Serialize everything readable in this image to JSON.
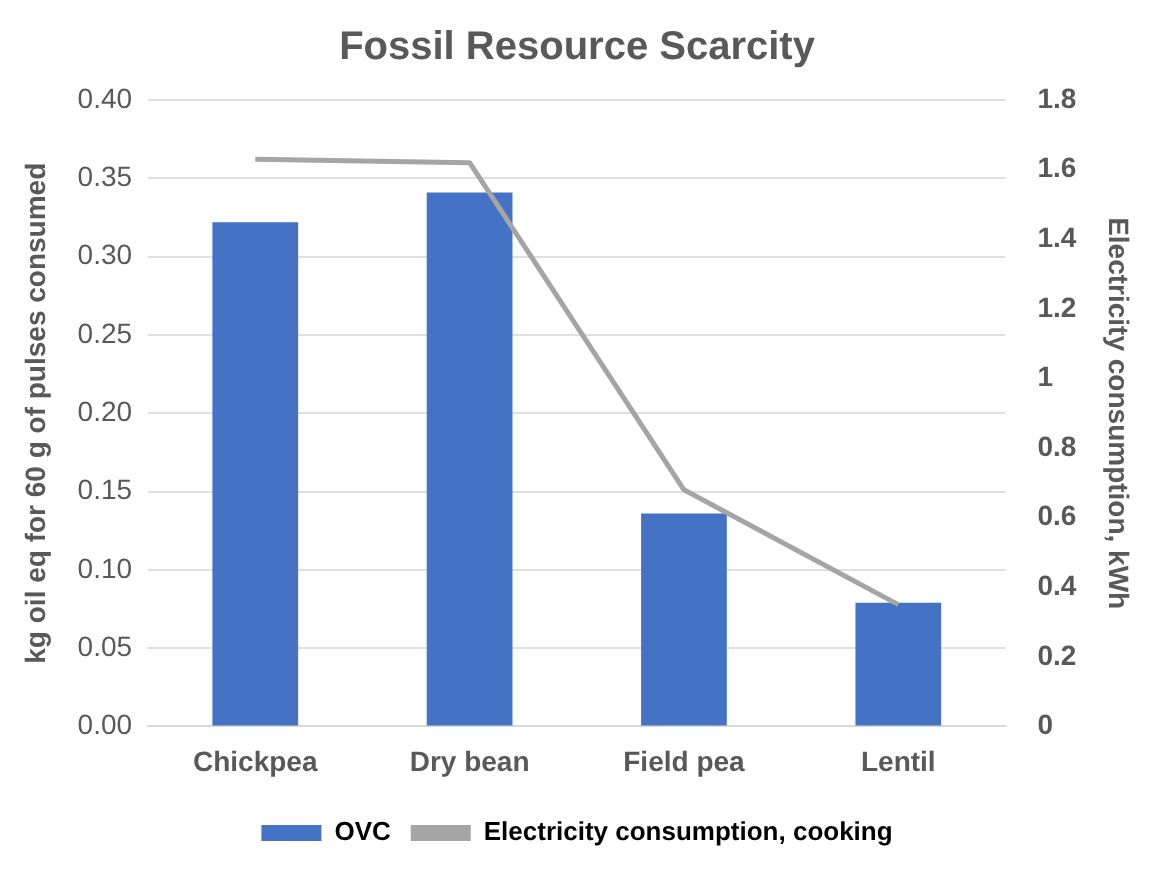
{
  "chart_data": {
    "type": "bar",
    "title": "Fossil Resource Scarcity",
    "ylabel": "kg oil eq for 60 g of pulses consumed",
    "y2label": "Electricity consumption, kWh",
    "categories": [
      "Chickpea",
      "Dry bean",
      "Field pea",
      "Lentil"
    ],
    "series": [
      {
        "name": "OVC",
        "color": "#4472c4",
        "values": [
          0.322,
          0.341,
          0.136,
          0.079
        ]
      },
      {
        "name": "Electricity consumption, cooking",
        "type": "line",
        "axis": "y2",
        "color": "#a5a5a5",
        "values": [
          1.63,
          1.62,
          0.68,
          0.35
        ]
      }
    ],
    "ylim": [
      0,
      0.4
    ],
    "yticks": [
      {
        "value": 0,
        "label": "0.00"
      },
      {
        "value": 0.05,
        "label": "0.05"
      },
      {
        "value": 0.1,
        "label": "0.10"
      },
      {
        "value": 0.15,
        "label": "0.15"
      },
      {
        "value": 0.2,
        "label": "0.20"
      },
      {
        "value": 0.25,
        "label": "0.25"
      },
      {
        "value": 0.3,
        "label": "0.30"
      },
      {
        "value": 0.35,
        "label": "0.35"
      },
      {
        "value": 0.4,
        "label": "0.40"
      }
    ],
    "y2lim": [
      0,
      1.8
    ],
    "y2ticks": [
      0,
      0.2,
      0.4,
      0.6,
      0.8,
      1,
      1.2,
      1.4,
      1.6,
      1.8
    ],
    "grid": "y",
    "legend": "bottom",
    "marker": "none"
  }
}
